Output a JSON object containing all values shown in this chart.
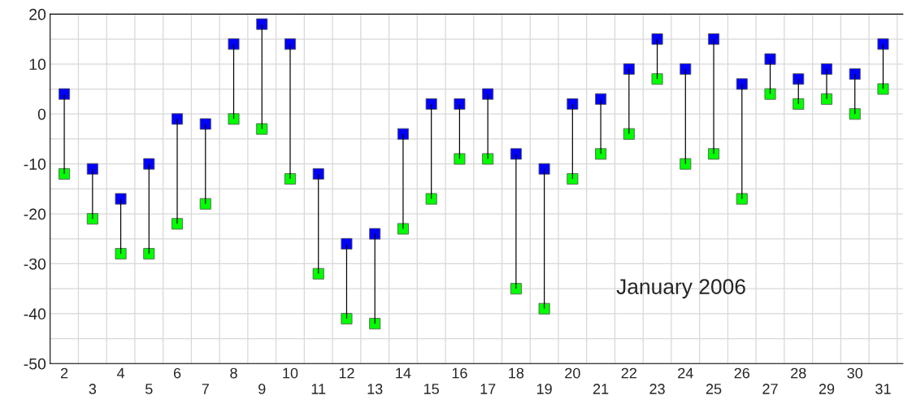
{
  "chart_data": {
    "type": "scatter",
    "categories": [
      "2",
      "3",
      "4",
      "5",
      "6",
      "7",
      "8",
      "9",
      "10",
      "11",
      "12",
      "13",
      "14",
      "15",
      "16",
      "17",
      "18",
      "19",
      "20",
      "21",
      "22",
      "23",
      "24",
      "25",
      "26",
      "27",
      "28",
      "29",
      "30",
      "31"
    ],
    "series": [
      {
        "type": "bar",
        "color": "#000000",
        "base": [
          -12,
          -21,
          -28,
          -28,
          -22,
          -18,
          -1,
          -3,
          -13,
          -32,
          -41,
          -42,
          -23,
          -17,
          -9,
          -9,
          -35,
          -39,
          -13,
          -8,
          -4,
          7,
          -10,
          -8,
          -17,
          4,
          2,
          3,
          0,
          5
        ],
        "values": [
          16,
          10,
          11,
          18,
          21,
          16,
          15,
          21,
          27,
          20,
          15,
          18,
          19,
          19,
          11,
          13,
          27,
          28,
          15,
          11,
          13,
          8,
          19,
          23,
          23,
          7,
          5,
          6,
          8,
          9
        ]
      },
      {
        "color": "#0000ff",
        "values": [
          4,
          -11,
          -17,
          -10,
          -1,
          -2,
          14,
          18,
          14,
          -12,
          -26,
          -24,
          -4,
          2,
          2,
          4,
          -8,
          -11,
          2,
          3,
          9,
          15,
          9,
          15,
          6,
          11,
          7,
          9,
          8,
          14
        ]
      },
      {
        "color": "#00ff00",
        "values": [
          -12,
          -21,
          -28,
          -28,
          -22,
          -18,
          -1,
          -3,
          -13,
          -32,
          -41,
          -42,
          -23,
          -17,
          -9,
          -9,
          -35,
          -39,
          -13,
          -8,
          -4,
          7,
          -10,
          -8,
          -17,
          4,
          2,
          3,
          0,
          5
        ]
      }
    ],
    "marker": "square",
    "ylim": [
      -50,
      20
    ],
    "yticks": [
      -50,
      {
        "value": -45,
        "label": null
      },
      -40,
      {
        "value": -35,
        "label": null
      },
      -30,
      {
        "value": -25,
        "label": null
      },
      -20,
      {
        "value": -15,
        "label": null
      },
      -10,
      {
        "value": -5,
        "label": null
      },
      0,
      {
        "value": 5,
        "label": null
      },
      10,
      {
        "value": 15,
        "label": null
      },
      20
    ],
    "grid": true,
    "annotations": [
      "January 2006"
    ]
  }
}
